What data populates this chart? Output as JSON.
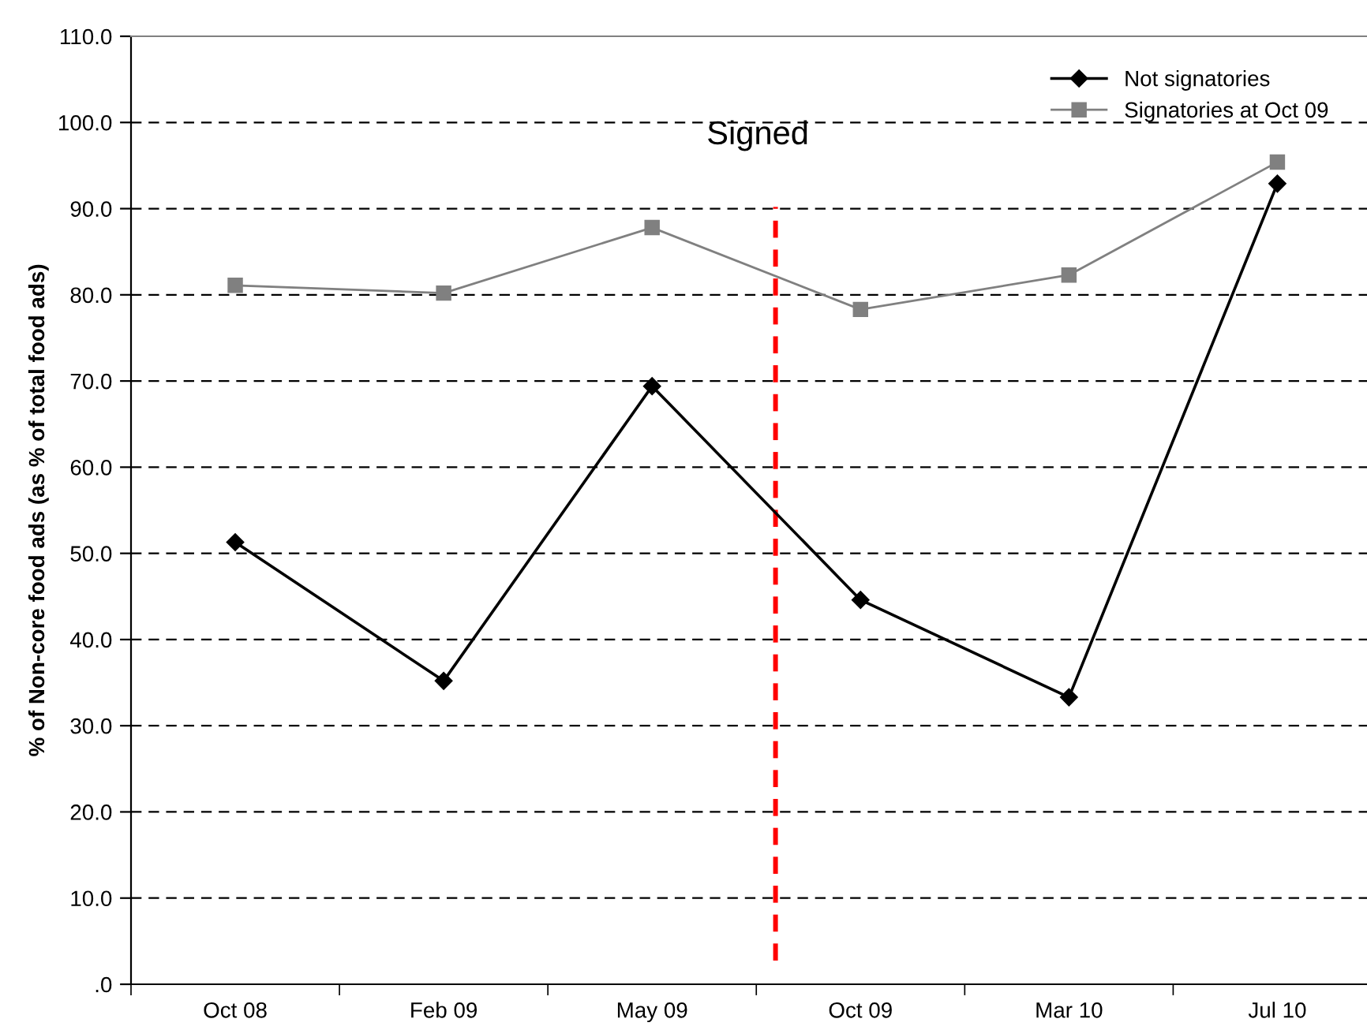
{
  "chart_data": {
    "type": "line",
    "ylabel": "% of Non-core food ads (as % of total food ads)",
    "categories": [
      "Oct 08",
      "Feb 09",
      "May 09",
      "Oct 09",
      "Mar 10",
      "Jul 10"
    ],
    "series": [
      {
        "name": "Not signatories",
        "color": "#000000",
        "marker": "diamond",
        "values": [
          51.3,
          35.2,
          69.4,
          44.6,
          33.3,
          92.9
        ]
      },
      {
        "name": "Signatories at Oct 09",
        "color": "#808080",
        "marker": "square",
        "values": [
          81.1,
          80.2,
          87.8,
          78.3,
          82.3,
          95.4
        ]
      }
    ],
    "ylim": [
      0,
      110
    ],
    "yticks": [
      {
        "value": 0,
        "label": ".0"
      },
      {
        "value": 10,
        "label": "10.0"
      },
      {
        "value": 20,
        "label": "20.0"
      },
      {
        "value": 30,
        "label": "30.0"
      },
      {
        "value": 40,
        "label": "40.0"
      },
      {
        "value": 50,
        "label": "50.0"
      },
      {
        "value": 60,
        "label": "60.0"
      },
      {
        "value": 70,
        "label": "70.0"
      },
      {
        "value": 80,
        "label": "80.0"
      },
      {
        "value": 90,
        "label": "90.0"
      },
      {
        "value": 100,
        "label": "100.0"
      },
      {
        "value": 110,
        "label": "110.0"
      }
    ],
    "annotations": [
      "Signed"
    ],
    "grid": "y",
    "legend": "top right",
    "line_style": "solid"
  }
}
